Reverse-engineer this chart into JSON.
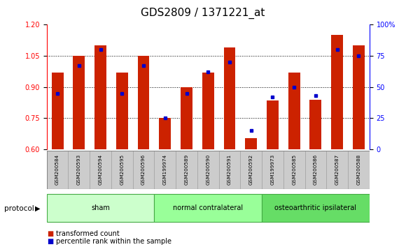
{
  "title": "GDS2809 / 1371221_at",
  "samples": [
    "GSM200584",
    "GSM200593",
    "GSM200594",
    "GSM200595",
    "GSM200596",
    "GSM199974",
    "GSM200589",
    "GSM200590",
    "GSM200591",
    "GSM200592",
    "GSM199973",
    "GSM200585",
    "GSM200586",
    "GSM200587",
    "GSM200588"
  ],
  "red_values": [
    0.97,
    1.05,
    1.1,
    0.97,
    1.05,
    0.75,
    0.9,
    0.97,
    1.09,
    0.655,
    0.835,
    0.97,
    0.84,
    1.15,
    1.1
  ],
  "blue_percentiles": [
    45,
    67,
    80,
    45,
    67,
    25,
    45,
    62,
    70,
    15,
    42,
    50,
    43,
    80,
    75
  ],
  "groups": [
    {
      "label": "sham",
      "start": 0,
      "end": 4,
      "color": "#ccffcc"
    },
    {
      "label": "normal contralateral",
      "start": 5,
      "end": 9,
      "color": "#99ff99"
    },
    {
      "label": "osteoarthritic ipsilateral",
      "start": 10,
      "end": 14,
      "color": "#66dd66"
    }
  ],
  "ylim_left": [
    0.6,
    1.2
  ],
  "ylim_right": [
    0,
    100
  ],
  "bar_color": "#cc2200",
  "dot_color": "#0000cc",
  "bar_baseline": 0.6,
  "grid_lines": [
    0.75,
    0.9,
    1.05
  ],
  "bar_width": 0.55,
  "title_fontsize": 11,
  "tick_fontsize": 7,
  "background_color": "#ffffff",
  "label_bg_color": "#cccccc",
  "label_edge_color": "#999999",
  "proto_edge_color": "#44aa44"
}
